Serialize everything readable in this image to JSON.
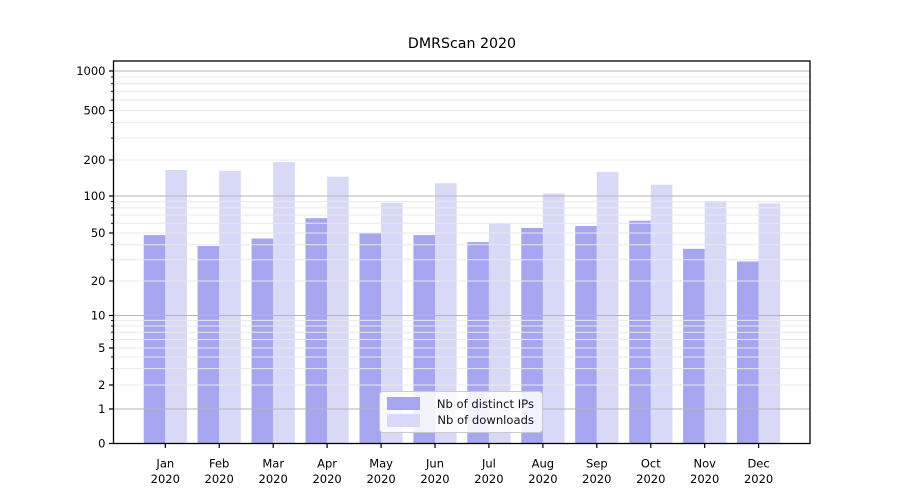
{
  "title": "DMRScan 2020",
  "legend": {
    "items": [
      {
        "label": "Nb of distinct IPs",
        "color": "#a5a5f0"
      },
      {
        "label": "Nb of downloads",
        "color": "#d8d8f7"
      }
    ]
  },
  "colors": {
    "bar_dark": "#a5a5f0",
    "bar_light": "#d8d8f7",
    "grid_major": "#b6b6b6",
    "grid_minor": "#e9e9e9",
    "axis": "#000000",
    "tick_text": "#000000"
  },
  "chart_data": {
    "type": "bar",
    "title": "DMRScan 2020",
    "categories": [
      "Jan",
      "Feb",
      "Mar",
      "Apr",
      "May",
      "Jun",
      "Jul",
      "Aug",
      "Sep",
      "Oct",
      "Nov",
      "Dec"
    ],
    "category_year_line": "2020",
    "series": [
      {
        "name": "Nb of distinct IPs",
        "color": "#a5a5f0",
        "values": [
          48,
          39,
          45,
          66,
          50,
          48,
          42,
          55,
          57,
          63,
          37,
          29
        ]
      },
      {
        "name": "Nb of downloads",
        "color": "#d8d8f7",
        "values": [
          165,
          162,
          192,
          145,
          88,
          128,
          60,
          105,
          159,
          124,
          91,
          87
        ]
      }
    ],
    "xlabel": "",
    "ylabel": "",
    "yscale": "symlog",
    "yticks": [
      0,
      1,
      2,
      5,
      10,
      20,
      50,
      100,
      200,
      500,
      1000
    ],
    "ylim": [
      0,
      1300
    ],
    "grid": true,
    "legend_position": "lower center inside"
  }
}
